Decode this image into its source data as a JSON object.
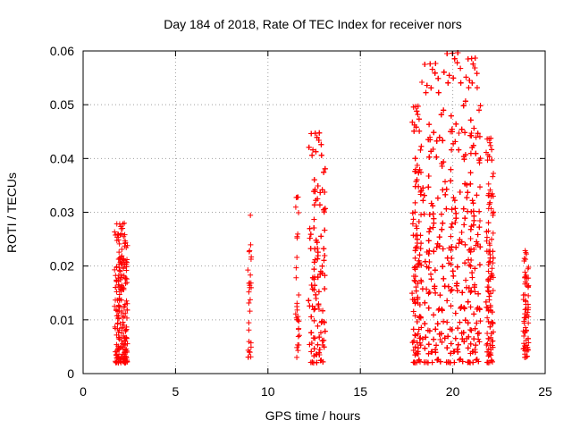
{
  "chart_data": {
    "type": "scatter",
    "title": "Day 184 of 2018, Rate Of TEC Index for receiver nors",
    "xlabel": "GPS time / hours",
    "ylabel": "ROTI / TECUs",
    "xlim": [
      0,
      25
    ],
    "ylim": [
      0,
      0.06
    ],
    "x_ticks": [
      "0",
      "5",
      "10",
      "15",
      "20",
      "25"
    ],
    "y_ticks": [
      "0",
      "0.01",
      "0.02",
      "0.03",
      "0.04",
      "0.05",
      "0.06"
    ],
    "grid": true,
    "marker": "plus",
    "color": "#ff0000",
    "clusters": [
      {
        "x": [
          1.7,
          2.4
        ],
        "y": [
          0.002,
          0.028
        ],
        "n": 220
      },
      {
        "x": [
          8.9,
          9.1
        ],
        "y": [
          0.003,
          0.031
        ],
        "n": 30
      },
      {
        "x": [
          11.5,
          11.7
        ],
        "y": [
          0.003,
          0.033
        ],
        "n": 30
      },
      {
        "x": [
          12.2,
          13.1
        ],
        "y": [
          0.002,
          0.045
        ],
        "n": 360
      },
      {
        "x": [
          17.8,
          18.3
        ],
        "y": [
          0.002,
          0.05
        ],
        "n": 260
      },
      {
        "x": [
          18.3,
          19.5
        ],
        "y": [
          0.002,
          0.058
        ],
        "n": 520
      },
      {
        "x": [
          19.5,
          20.7
        ],
        "y": [
          0.002,
          0.06
        ],
        "n": 520
      },
      {
        "x": [
          20.7,
          21.5
        ],
        "y": [
          0.002,
          0.059
        ],
        "n": 360
      },
      {
        "x": [
          21.8,
          22.2
        ],
        "y": [
          0.002,
          0.044
        ],
        "n": 170
      },
      {
        "x": [
          23.8,
          24.1
        ],
        "y": [
          0.003,
          0.023
        ],
        "n": 70
      }
    ]
  }
}
